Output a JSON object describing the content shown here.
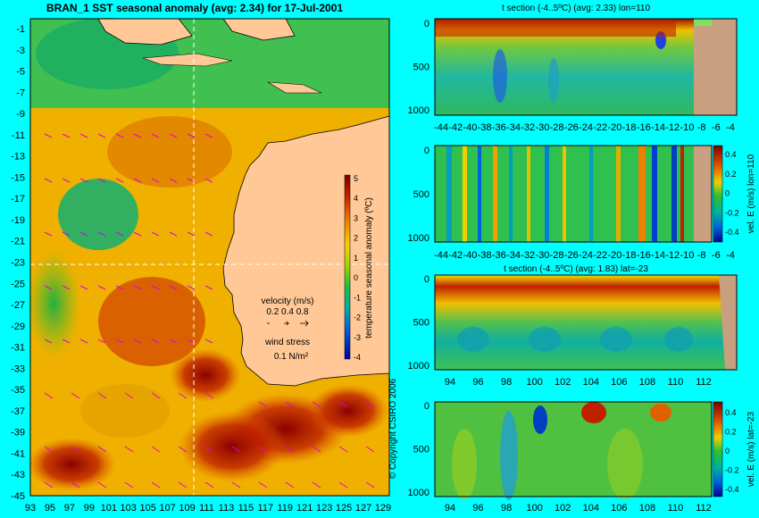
{
  "main": {
    "title": "BRAN_1  SST seasonal anomaly  (avg: 2.34)  for 17-Jul-2001",
    "colorbar_label": "temperature seasonal anomaly (ºC)",
    "colorbar_ticks": [
      "5",
      "4",
      "3",
      "2",
      "1",
      "0",
      "-1",
      "-2",
      "-3",
      "-4"
    ],
    "velocity_label": "velocity (m/s)",
    "velocity_scale": "0.2 0.4 0.8",
    "wind_label": "wind stress",
    "wind_scale": "0.1 N/m²",
    "copyright": "© Copyright CSIRO 2006"
  },
  "chart_data": [
    {
      "type": "heatmap",
      "title": "BRAN_1  SST seasonal anomaly  (avg: 2.34)  for 17-Jul-2001",
      "x_ticks": [
        "93",
        "95",
        "97",
        "99",
        "101",
        "103",
        "105",
        "107",
        "109",
        "111",
        "113",
        "115",
        "117",
        "119",
        "121",
        "123",
        "125",
        "127",
        "129"
      ],
      "y_ticks": [
        "-1",
        "-3",
        "-5",
        "-7",
        "-9",
        "-11",
        "-13",
        "-15",
        "-17",
        "-19",
        "-21",
        "-23",
        "-25",
        "-27",
        "-29",
        "-31",
        "-33",
        "-35",
        "-37",
        "-39",
        "-41",
        "-43",
        "-45"
      ],
      "xlim": [
        93,
        130
      ],
      "ylim": [
        -45,
        0
      ],
      "section_lines": {
        "lon": 110,
        "lat": -23
      },
      "colorbar": {
        "label": "temperature seasonal anomaly (ºC)",
        "range": [
          -4,
          5
        ]
      },
      "avg": 2.34
    },
    {
      "type": "heatmap",
      "title": "t section (-4..5ºC) (avg: 2.33) lon=110",
      "x_ticks": [
        "-44",
        "-42",
        "-40",
        "-38",
        "-36",
        "-34",
        "-32",
        "-30",
        "-28",
        "-26",
        "-24",
        "-22",
        "-20",
        "-18",
        "-16",
        "-14",
        "-12",
        "-10",
        "-8",
        "-6",
        "-4"
      ],
      "y_ticks": [
        "0",
        "500",
        "1000"
      ],
      "avg": 2.33
    },
    {
      "type": "heatmap",
      "title": "",
      "x_ticks": [
        "-44",
        "-42",
        "-40",
        "-38",
        "-36",
        "-34",
        "-32",
        "-30",
        "-28",
        "-26",
        "-24",
        "-22",
        "-20",
        "-18",
        "-16",
        "-14",
        "-12",
        "-10",
        "-8",
        "-6",
        "-4"
      ],
      "y_ticks": [
        "0",
        "500",
        "1000"
      ],
      "colorbar": {
        "label": "vel. E (m/s) lon=110",
        "ticks": [
          "0.4",
          "0.2",
          "0",
          "-0.2",
          "-0.4"
        ],
        "range": [
          -0.5,
          0.5
        ]
      }
    },
    {
      "type": "heatmap",
      "title": "t section (-4..5ºC) (avg: 1.83) lat=-23",
      "x_ticks": [
        "94",
        "96",
        "98",
        "100",
        "102",
        "104",
        "106",
        "108",
        "110",
        "112"
      ],
      "y_ticks": [
        "0",
        "500",
        "1000"
      ],
      "avg": 1.83
    },
    {
      "type": "heatmap",
      "title": "",
      "x_ticks": [
        "94",
        "96",
        "98",
        "100",
        "102",
        "104",
        "106",
        "108",
        "110",
        "112"
      ],
      "y_ticks": [
        "0",
        "500",
        "1000"
      ],
      "colorbar": {
        "label": "vel. E (m/s) lat=-23",
        "ticks": [
          "0.4",
          "0.2",
          "0",
          "-0.2",
          "-0.4"
        ],
        "range": [
          -0.5,
          0.5
        ]
      }
    }
  ]
}
